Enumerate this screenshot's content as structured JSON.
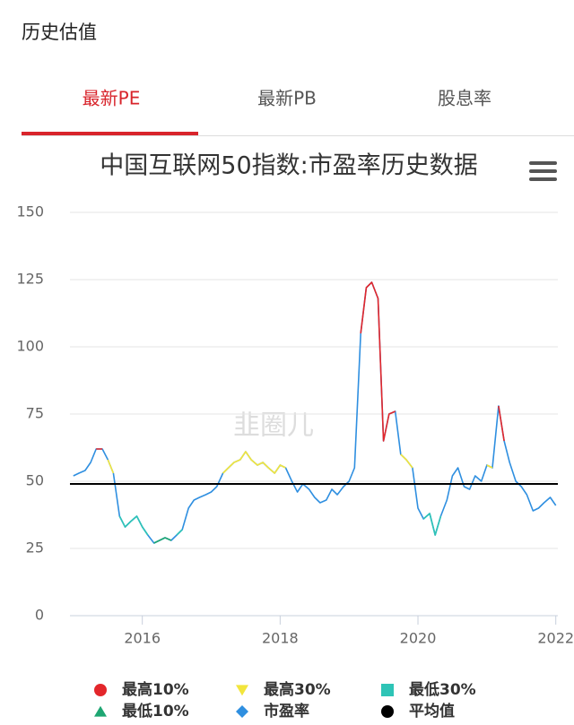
{
  "header": {
    "title": "历史估值"
  },
  "tabs": {
    "items": [
      "最新PE",
      "最新PB",
      "股息率"
    ],
    "active": 0
  },
  "chart_data": {
    "type": "line",
    "title": "中国互联网50指数:市盈率历史数据",
    "watermark": "韭圈儿",
    "xlim": [
      2014.95,
      2022.03
    ],
    "xticks": [
      2016,
      2018,
      2020,
      2022
    ],
    "ylim": [
      0,
      150
    ],
    "yticks": [
      0,
      25,
      50,
      75,
      100,
      125,
      150
    ],
    "grid": true,
    "series": [
      {
        "name": "最高10%",
        "color": "#e3262b",
        "marker": "circle",
        "x": [
          2015.33,
          2015.42,
          null,
          2019.17,
          2019.25,
          2019.33,
          2019.42,
          2019.5,
          2019.58,
          2019.67,
          null,
          2021.17,
          2021.25
        ],
        "values": [
          62,
          62,
          null,
          105,
          122,
          124,
          118,
          65,
          75,
          76,
          null,
          78,
          65
        ]
      },
      {
        "name": "最高30%",
        "color": "#f2e53c",
        "marker": "triangle-down",
        "x": [
          2015.25,
          null,
          2015.5,
          2015.58,
          null,
          2017.17,
          2017.25,
          2017.33,
          2017.42,
          2017.5,
          2017.58,
          2017.67,
          2017.75,
          2017.83,
          2017.92,
          2018,
          2018.08,
          null,
          2019.08,
          null,
          2019.75,
          2019.83,
          2019.92,
          null,
          2020.58,
          null,
          2021,
          2021.08,
          null,
          2021.33
        ],
        "values": [
          57,
          null,
          58,
          53,
          null,
          53,
          55,
          57,
          58,
          61,
          58,
          56,
          57,
          55,
          53,
          56,
          55,
          null,
          55,
          null,
          60,
          58,
          55,
          null,
          55,
          null,
          56,
          55,
          null,
          57
        ]
      },
      {
        "name": "最低30%",
        "color": "#2ec4b6",
        "marker": "square",
        "x": [
          2015.67,
          2015.75,
          2015.83,
          2015.92,
          2016,
          2016.08,
          null,
          2016.5,
          2016.58,
          null,
          2020.08,
          2020.17,
          2020.25,
          2020.33,
          null,
          2021.67
        ],
        "values": [
          37,
          33,
          35,
          37,
          33,
          30,
          null,
          30,
          32,
          null,
          36,
          38,
          30,
          37,
          null,
          39
        ]
      },
      {
        "name": "最低10%",
        "color": "#1ea672",
        "marker": "triangle-up",
        "x": [
          2016.17,
          2016.25,
          2016.33,
          2016.42
        ],
        "values": [
          27,
          28,
          29,
          28
        ]
      },
      {
        "name": "市盈率",
        "color": "#2f8fe0",
        "marker": "diamond",
        "x": [
          2015,
          2015.08,
          2015.17,
          2015.25,
          2015.33,
          2015.42,
          2015.5,
          2015.58,
          2015.67,
          2015.75,
          2015.83,
          2015.92,
          2016,
          2016.08,
          2016.17,
          2016.25,
          2016.33,
          2016.42,
          2016.5,
          2016.58,
          2016.67,
          2016.75,
          2016.83,
          2016.92,
          2017,
          2017.08,
          2017.17,
          2017.25,
          2017.33,
          2017.42,
          2017.5,
          2017.58,
          2017.67,
          2017.75,
          2017.83,
          2017.92,
          2018,
          2018.08,
          2018.17,
          2018.25,
          2018.33,
          2018.42,
          2018.5,
          2018.58,
          2018.67,
          2018.75,
          2018.83,
          2018.92,
          2019,
          2019.08,
          2019.17,
          2019.25,
          2019.33,
          2019.42,
          2019.5,
          2019.58,
          2019.67,
          2019.75,
          2019.83,
          2019.92,
          2020,
          2020.08,
          2020.17,
          2020.25,
          2020.33,
          2020.42,
          2020.5,
          2020.58,
          2020.67,
          2020.75,
          2020.83,
          2020.92,
          2021,
          2021.08,
          2021.17,
          2021.25,
          2021.33,
          2021.42,
          2021.5,
          2021.58,
          2021.67,
          2021.75,
          2021.83,
          2021.92,
          2022
        ],
        "values": [
          52,
          53,
          54,
          57,
          62,
          62,
          58,
          53,
          37,
          33,
          35,
          37,
          33,
          30,
          27,
          28,
          29,
          28,
          30,
          32,
          40,
          43,
          44,
          45,
          46,
          48,
          53,
          55,
          57,
          58,
          61,
          58,
          56,
          57,
          55,
          53,
          56,
          55,
          50,
          46,
          49,
          47,
          44,
          42,
          43,
          47,
          45,
          48,
          50,
          55,
          105,
          122,
          124,
          118,
          65,
          75,
          76,
          60,
          58,
          55,
          40,
          36,
          38,
          30,
          37,
          43,
          52,
          55,
          48,
          47,
          52,
          50,
          56,
          55,
          78,
          65,
          57,
          50,
          48,
          45,
          39,
          40,
          42,
          44,
          41
        ]
      },
      {
        "name": "平均值",
        "color": "#000000",
        "marker": "circle",
        "x": [
          2014.95,
          2022.03
        ],
        "values": [
          49,
          49
        ]
      }
    ]
  }
}
